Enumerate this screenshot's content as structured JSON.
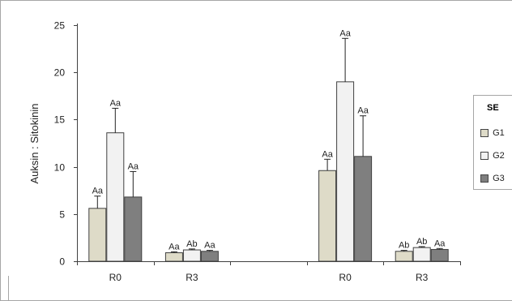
{
  "chart_data": {
    "type": "bar",
    "title": "",
    "xlabel": "",
    "ylabel": "Auksin : Sitokinin",
    "ylim": [
      0,
      25
    ],
    "yticks": [
      0,
      5,
      10,
      15,
      20,
      25
    ],
    "grid": false,
    "error_bars": true,
    "groups": [
      {
        "category": "R0",
        "values": [
          5.6,
          13.6,
          6.8
        ],
        "errors": [
          1.3,
          2.6,
          2.7
        ],
        "labels": [
          "Aa",
          "Aa",
          "Aa"
        ]
      },
      {
        "category": "R3",
        "values": [
          0.9,
          1.2,
          1.05
        ],
        "errors": [
          0.1,
          0.1,
          0.1
        ],
        "labels": [
          "Aa",
          "Ab",
          "Aa"
        ]
      },
      {
        "category": "",
        "values": [],
        "errors": [],
        "labels": []
      },
      {
        "category": "R0",
        "values": [
          9.6,
          19.0,
          11.1
        ],
        "errors": [
          1.2,
          4.6,
          4.3
        ],
        "labels": [
          "Aa",
          "Aa",
          "Aa"
        ]
      },
      {
        "category": "R3",
        "values": [
          1.05,
          1.45,
          1.25
        ],
        "errors": [
          0.1,
          0.1,
          0.1
        ],
        "labels": [
          "Ab",
          "Ab",
          "Aa"
        ]
      }
    ],
    "series": [
      {
        "name": "G1",
        "color": "#dedbc8"
      },
      {
        "name": "G2",
        "color": "#f2f2f2"
      },
      {
        "name": "G3",
        "color": "#7f7f7f"
      }
    ],
    "legend": {
      "title": "SE",
      "position": "right"
    }
  }
}
